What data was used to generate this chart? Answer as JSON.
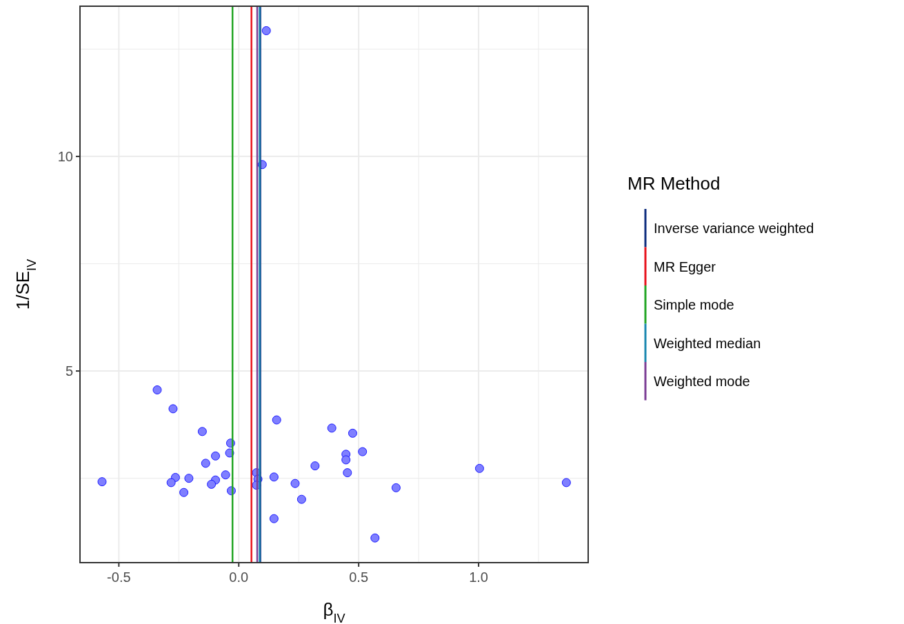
{
  "chart_data": {
    "type": "scatter",
    "xlabel": "β$_{IV}$",
    "ylabel": "1/SE$_{IV}$",
    "legend_title": "MR Method",
    "legend": "right",
    "grid": true,
    "marker": "circle",
    "xlim": [
      -0.662,
      1.457
    ],
    "ylim": [
      0.535,
      13.5
    ],
    "xticks": [
      {
        "value": -0.5,
        "label": "-0.5"
      },
      {
        "value": -0.25,
        "label": null
      },
      {
        "value": 0,
        "label": "0.0"
      },
      {
        "value": 0.25,
        "label": null
      },
      {
        "value": 0.5,
        "label": "0.5"
      },
      {
        "value": 0.75,
        "label": null
      },
      {
        "value": 1,
        "label": "1.0"
      },
      {
        "value": 1.25,
        "label": null
      }
    ],
    "yticks": [
      {
        "value": 2.5,
        "label": null
      },
      5,
      {
        "value": 7.5,
        "label": null
      },
      10,
      {
        "value": 12.5,
        "label": null
      }
    ],
    "series": [
      {
        "color": "#7f7fff",
        "x": [
          -0.34,
          -0.274,
          -0.152,
          -0.034,
          -0.038,
          -0.097,
          -0.138,
          -0.055,
          -0.264,
          -0.282,
          -0.208,
          -0.097,
          -0.114,
          -0.229,
          -0.031,
          -0.57,
          0.074,
          0.08,
          0.074,
          0.147,
          0.235,
          0.262,
          0.147,
          0.158,
          0.318,
          0.388,
          0.475,
          0.516,
          0.447,
          0.447,
          0.453,
          0.656,
          0.568,
          1.004,
          1.366,
          0.115,
          0.098
        ],
        "values": [
          4.56,
          4.12,
          3.59,
          3.32,
          3.09,
          3.02,
          2.85,
          2.58,
          2.52,
          2.4,
          2.5,
          2.46,
          2.36,
          2.17,
          2.21,
          2.42,
          2.63,
          2.48,
          2.34,
          2.53,
          2.38,
          2.01,
          1.56,
          3.86,
          2.79,
          3.67,
          3.55,
          3.12,
          3.06,
          2.93,
          2.63,
          2.28,
          1.11,
          2.73,
          2.4,
          12.93,
          9.81
        ]
      },
      {
        "type": "line",
        "marker": "none",
        "name": "Inverse variance weighted",
        "color": "#0d2c7e",
        "x": [
          0.09,
          0.09
        ],
        "values": [
          0.535,
          13.5
        ]
      },
      {
        "type": "line",
        "marker": "none",
        "name": "MR Egger",
        "color": "#e8121c",
        "x": [
          0.053,
          0.053
        ],
        "values": [
          0.535,
          13.5
        ]
      },
      {
        "type": "line",
        "marker": "none",
        "name": "Simple mode",
        "color": "#22a524",
        "x": [
          -0.026,
          -0.026
        ],
        "values": [
          0.535,
          13.5
        ]
      },
      {
        "type": "line",
        "marker": "none",
        "name": "Weighted median",
        "color": "#1a87b0",
        "x": [
          0.087,
          0.087
        ],
        "values": [
          0.535,
          13.5
        ]
      },
      {
        "type": "line",
        "marker": "none",
        "name": "Weighted mode",
        "color": "#7c3e95",
        "x": [
          0.077,
          0.077
        ],
        "values": [
          0.535,
          13.5
        ]
      }
    ]
  }
}
